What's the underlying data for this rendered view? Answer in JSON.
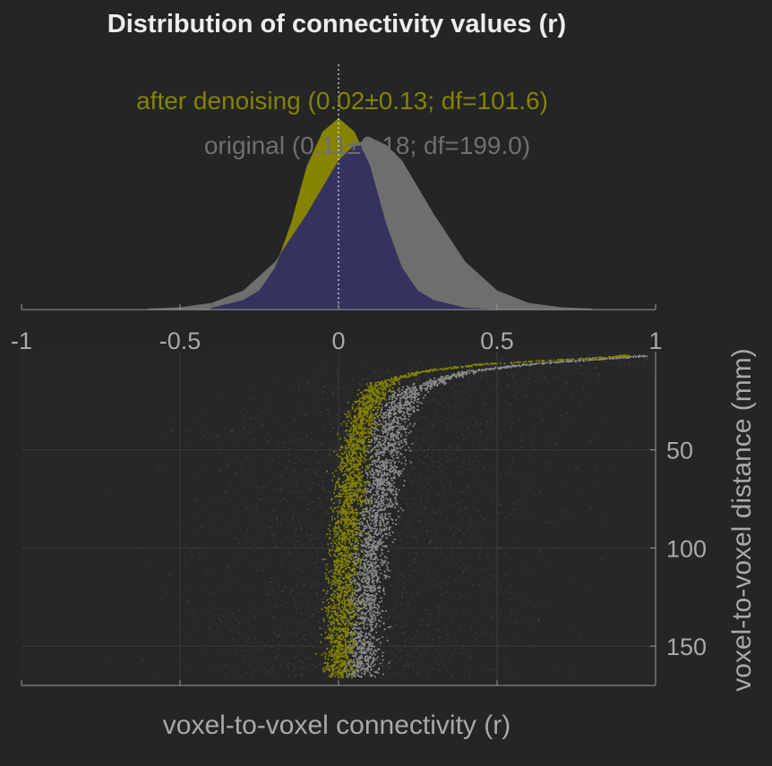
{
  "chart_data": [
    {
      "type": "area",
      "title": "Distribution of connectivity values (r)",
      "xlim": [
        -1,
        1
      ],
      "x_ticks": [
        "-1",
        "-0.5",
        "0",
        "0.5",
        "1"
      ],
      "series": [
        {
          "name": "original (0.11±0.18; df=199.0)",
          "color": "#6e6e6e",
          "x": [
            -0.6,
            -0.5,
            -0.4,
            -0.3,
            -0.2,
            -0.1,
            0.0,
            0.05,
            0.1,
            0.15,
            0.2,
            0.3,
            0.4,
            0.5,
            0.6,
            0.7,
            0.8
          ],
          "density": [
            0.005,
            0.012,
            0.035,
            0.1,
            0.25,
            0.5,
            0.78,
            0.86,
            0.9,
            0.86,
            0.78,
            0.5,
            0.25,
            0.1,
            0.035,
            0.012,
            0.005
          ]
        },
        {
          "name": "after denoising (0.02±0.13; df=101.6)",
          "color": "#858300",
          "x": [
            -0.4,
            -0.3,
            -0.25,
            -0.2,
            -0.15,
            -0.1,
            -0.05,
            0.0,
            0.05,
            0.1,
            0.15,
            0.2,
            0.25,
            0.3,
            0.4,
            0.5
          ],
          "density": [
            0.01,
            0.05,
            0.1,
            0.22,
            0.45,
            0.75,
            0.93,
            1.0,
            0.93,
            0.75,
            0.45,
            0.22,
            0.1,
            0.05,
            0.01,
            0.002
          ]
        }
      ],
      "overlap_color": "#34325f",
      "reference_line_x": 0
    },
    {
      "type": "scatter",
      "xlabel": "voxel-to-voxel connectivity (r)",
      "ylabel": "voxel-to-voxel distance (mm)",
      "xlim": [
        -1,
        1
      ],
      "ylim": [
        0,
        170
      ],
      "y_inverted": true,
      "y_ticks": [
        "50",
        "100",
        "150"
      ],
      "grid": true,
      "series": [
        {
          "name": "original",
          "color": "#8c8c8c",
          "distance": [
            2,
            6,
            10,
            15,
            20,
            30,
            40,
            60,
            80,
            100,
            120,
            140,
            160
          ],
          "mean_r": [
            0.95,
            0.6,
            0.4,
            0.3,
            0.22,
            0.18,
            0.16,
            0.14,
            0.12,
            0.1,
            0.09,
            0.08,
            0.07
          ]
        },
        {
          "name": "after denoising",
          "color": "#858300",
          "distance": [
            2,
            6,
            10,
            15,
            20,
            30,
            40,
            60,
            80,
            100,
            120,
            140,
            160
          ],
          "mean_r": [
            0.9,
            0.45,
            0.25,
            0.15,
            0.11,
            0.08,
            0.06,
            0.04,
            0.03,
            0.02,
            0.01,
            0.005,
            0.0
          ]
        }
      ]
    }
  ]
}
